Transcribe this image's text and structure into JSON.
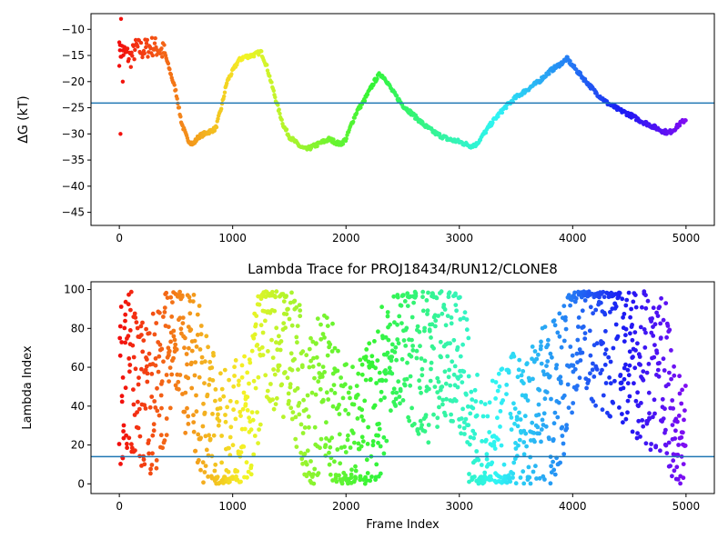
{
  "chart_data": [
    {
      "type": "scatter",
      "title": "",
      "xlabel": "",
      "ylabel": "ΔG (kT)",
      "xlim": [
        -250,
        5250
      ],
      "ylim": [
        -47.5,
        -7
      ],
      "xticks": [
        0,
        1000,
        2000,
        3000,
        4000,
        5000
      ],
      "xtick_labels": [
        "0",
        "1000",
        "2000",
        "3000",
        "4000",
        "5000"
      ],
      "yticks": [
        -10,
        -15,
        -20,
        -25,
        -30,
        -35,
        -40,
        -45
      ],
      "ytick_labels": [
        "−10",
        "−15",
        "−20",
        "−25",
        "−30",
        "−35",
        "−40",
        "−45"
      ],
      "hline": -24.1,
      "hline_color": "#1f77b4",
      "color_map": "rainbow (red at frame 0 → violet at frame 5000)",
      "series": [
        {
          "x": [
            0,
            20,
            50,
            100,
            150,
            200,
            250,
            300,
            350,
            400,
            500,
            550,
            600,
            650,
            700,
            800,
            850,
            900,
            950,
            1000,
            1050,
            1100,
            1150,
            1200,
            1250,
            1300,
            1350,
            1400,
            1450,
            1500,
            1550,
            1600,
            1650,
            1700,
            1750,
            1800,
            1850,
            1900,
            1950,
            2000,
            2050,
            2100,
            2150,
            2200,
            2250,
            2300,
            2350,
            2400,
            2500,
            2600,
            2700,
            2800,
            2900,
            3000,
            3100,
            3150,
            3200,
            3300,
            3400,
            3500,
            3600,
            3700,
            3800,
            3900,
            3950,
            4000,
            4100,
            4200,
            4300,
            4400,
            4500,
            4600,
            4700,
            4800,
            4850,
            4900,
            4950,
            5000
          ],
          "y": [
            -15,
            -14,
            -14.5,
            -15.5,
            -13.5,
            -14,
            -13.5,
            -13.2,
            -13.8,
            -14.5,
            -22,
            -28,
            -31,
            -32,
            -30.5,
            -29.5,
            -29,
            -25,
            -20,
            -18,
            -16,
            -15.3,
            -15.1,
            -14.8,
            -14.3,
            -17,
            -21,
            -25,
            -28.5,
            -30.5,
            -31.5,
            -32.5,
            -33,
            -32.5,
            -32,
            -31.5,
            -31,
            -31.5,
            -32,
            -31,
            -28,
            -25.5,
            -24,
            -22,
            -20,
            -18.5,
            -19.5,
            -21.5,
            -24.5,
            -26.5,
            -28.5,
            -30,
            -31,
            -31.5,
            -32.3,
            -32,
            -30.5,
            -27.5,
            -25,
            -23,
            -21.5,
            -20,
            -18,
            -16.5,
            -15.6,
            -17,
            -19.5,
            -22,
            -24,
            -25.3,
            -26.3,
            -27.5,
            -28.5,
            -29.5,
            -29.8,
            -29,
            -28,
            -27.2
          ]
        }
      ]
    },
    {
      "type": "scatter",
      "title": "Lambda Trace for PROJ18434/RUN12/CLONE8",
      "xlabel": "Frame Index",
      "ylabel": "Lambda Index",
      "xlim": [
        -250,
        5250
      ],
      "ylim": [
        -5,
        104
      ],
      "xticks": [
        0,
        1000,
        2000,
        3000,
        4000,
        5000
      ],
      "xtick_labels": [
        "0",
        "1000",
        "2000",
        "3000",
        "4000",
        "5000"
      ],
      "yticks": [
        0,
        20,
        40,
        60,
        80,
        100
      ],
      "ytick_labels": [
        "0",
        "20",
        "40",
        "60",
        "80",
        "100"
      ],
      "hline": 14,
      "hline_color": "#1f77b4",
      "color_map": "rainbow (red at frame 0 → violet at frame 5000)",
      "series": [
        {
          "x": [
            0,
            30,
            60,
            100,
            150,
            200,
            250,
            300,
            350,
            400,
            450,
            500,
            550,
            600,
            650,
            700,
            750,
            800,
            850,
            900,
            950,
            1000,
            1050,
            1100,
            1150,
            1200,
            1250,
            1300,
            1350,
            1400,
            1450,
            1500,
            1550,
            1600,
            1650,
            1700,
            1750,
            1800,
            1850,
            1900,
            1950,
            2000,
            2050,
            2100,
            2150,
            2200,
            2250,
            2300,
            2350,
            2400,
            2450,
            2500,
            2550,
            2600,
            2650,
            2700,
            2750,
            2800,
            2850,
            2900,
            2950,
            3000,
            3050,
            3100,
            3150,
            3200,
            3250,
            3300,
            3350,
            3400,
            3450,
            3500,
            3550,
            3600,
            3650,
            3700,
            3750,
            3800,
            3850,
            3900,
            3950,
            4000,
            4050,
            4100,
            4150,
            4200,
            4250,
            4300,
            4350,
            4400,
            4450,
            4500,
            4550,
            4600,
            4650,
            4700,
            4750,
            4800,
            4850,
            4900,
            4950,
            5000
          ],
          "y": [
            50,
            55,
            60,
            60,
            50,
            45,
            45,
            50,
            50,
            60,
            70,
            75,
            70,
            65,
            60,
            50,
            40,
            30,
            25,
            20,
            20,
            20,
            25,
            30,
            35,
            50,
            65,
            75,
            80,
            80,
            75,
            70,
            60,
            50,
            40,
            35,
            45,
            50,
            45,
            40,
            30,
            20,
            18,
            20,
            25,
            30,
            35,
            45,
            60,
            75,
            80,
            80,
            75,
            70,
            65,
            60,
            65,
            70,
            75,
            75,
            70,
            70,
            60,
            25,
            15,
            12,
            12,
            15,
            20,
            25,
            25,
            25,
            28,
            30,
            30,
            35,
            40,
            40,
            45,
            50,
            55,
            80,
            85,
            85,
            85,
            82,
            80,
            78,
            75,
            72,
            70,
            68,
            65,
            62,
            60,
            58,
            55,
            55,
            50,
            20,
            15,
            15
          ]
        }
      ]
    }
  ]
}
